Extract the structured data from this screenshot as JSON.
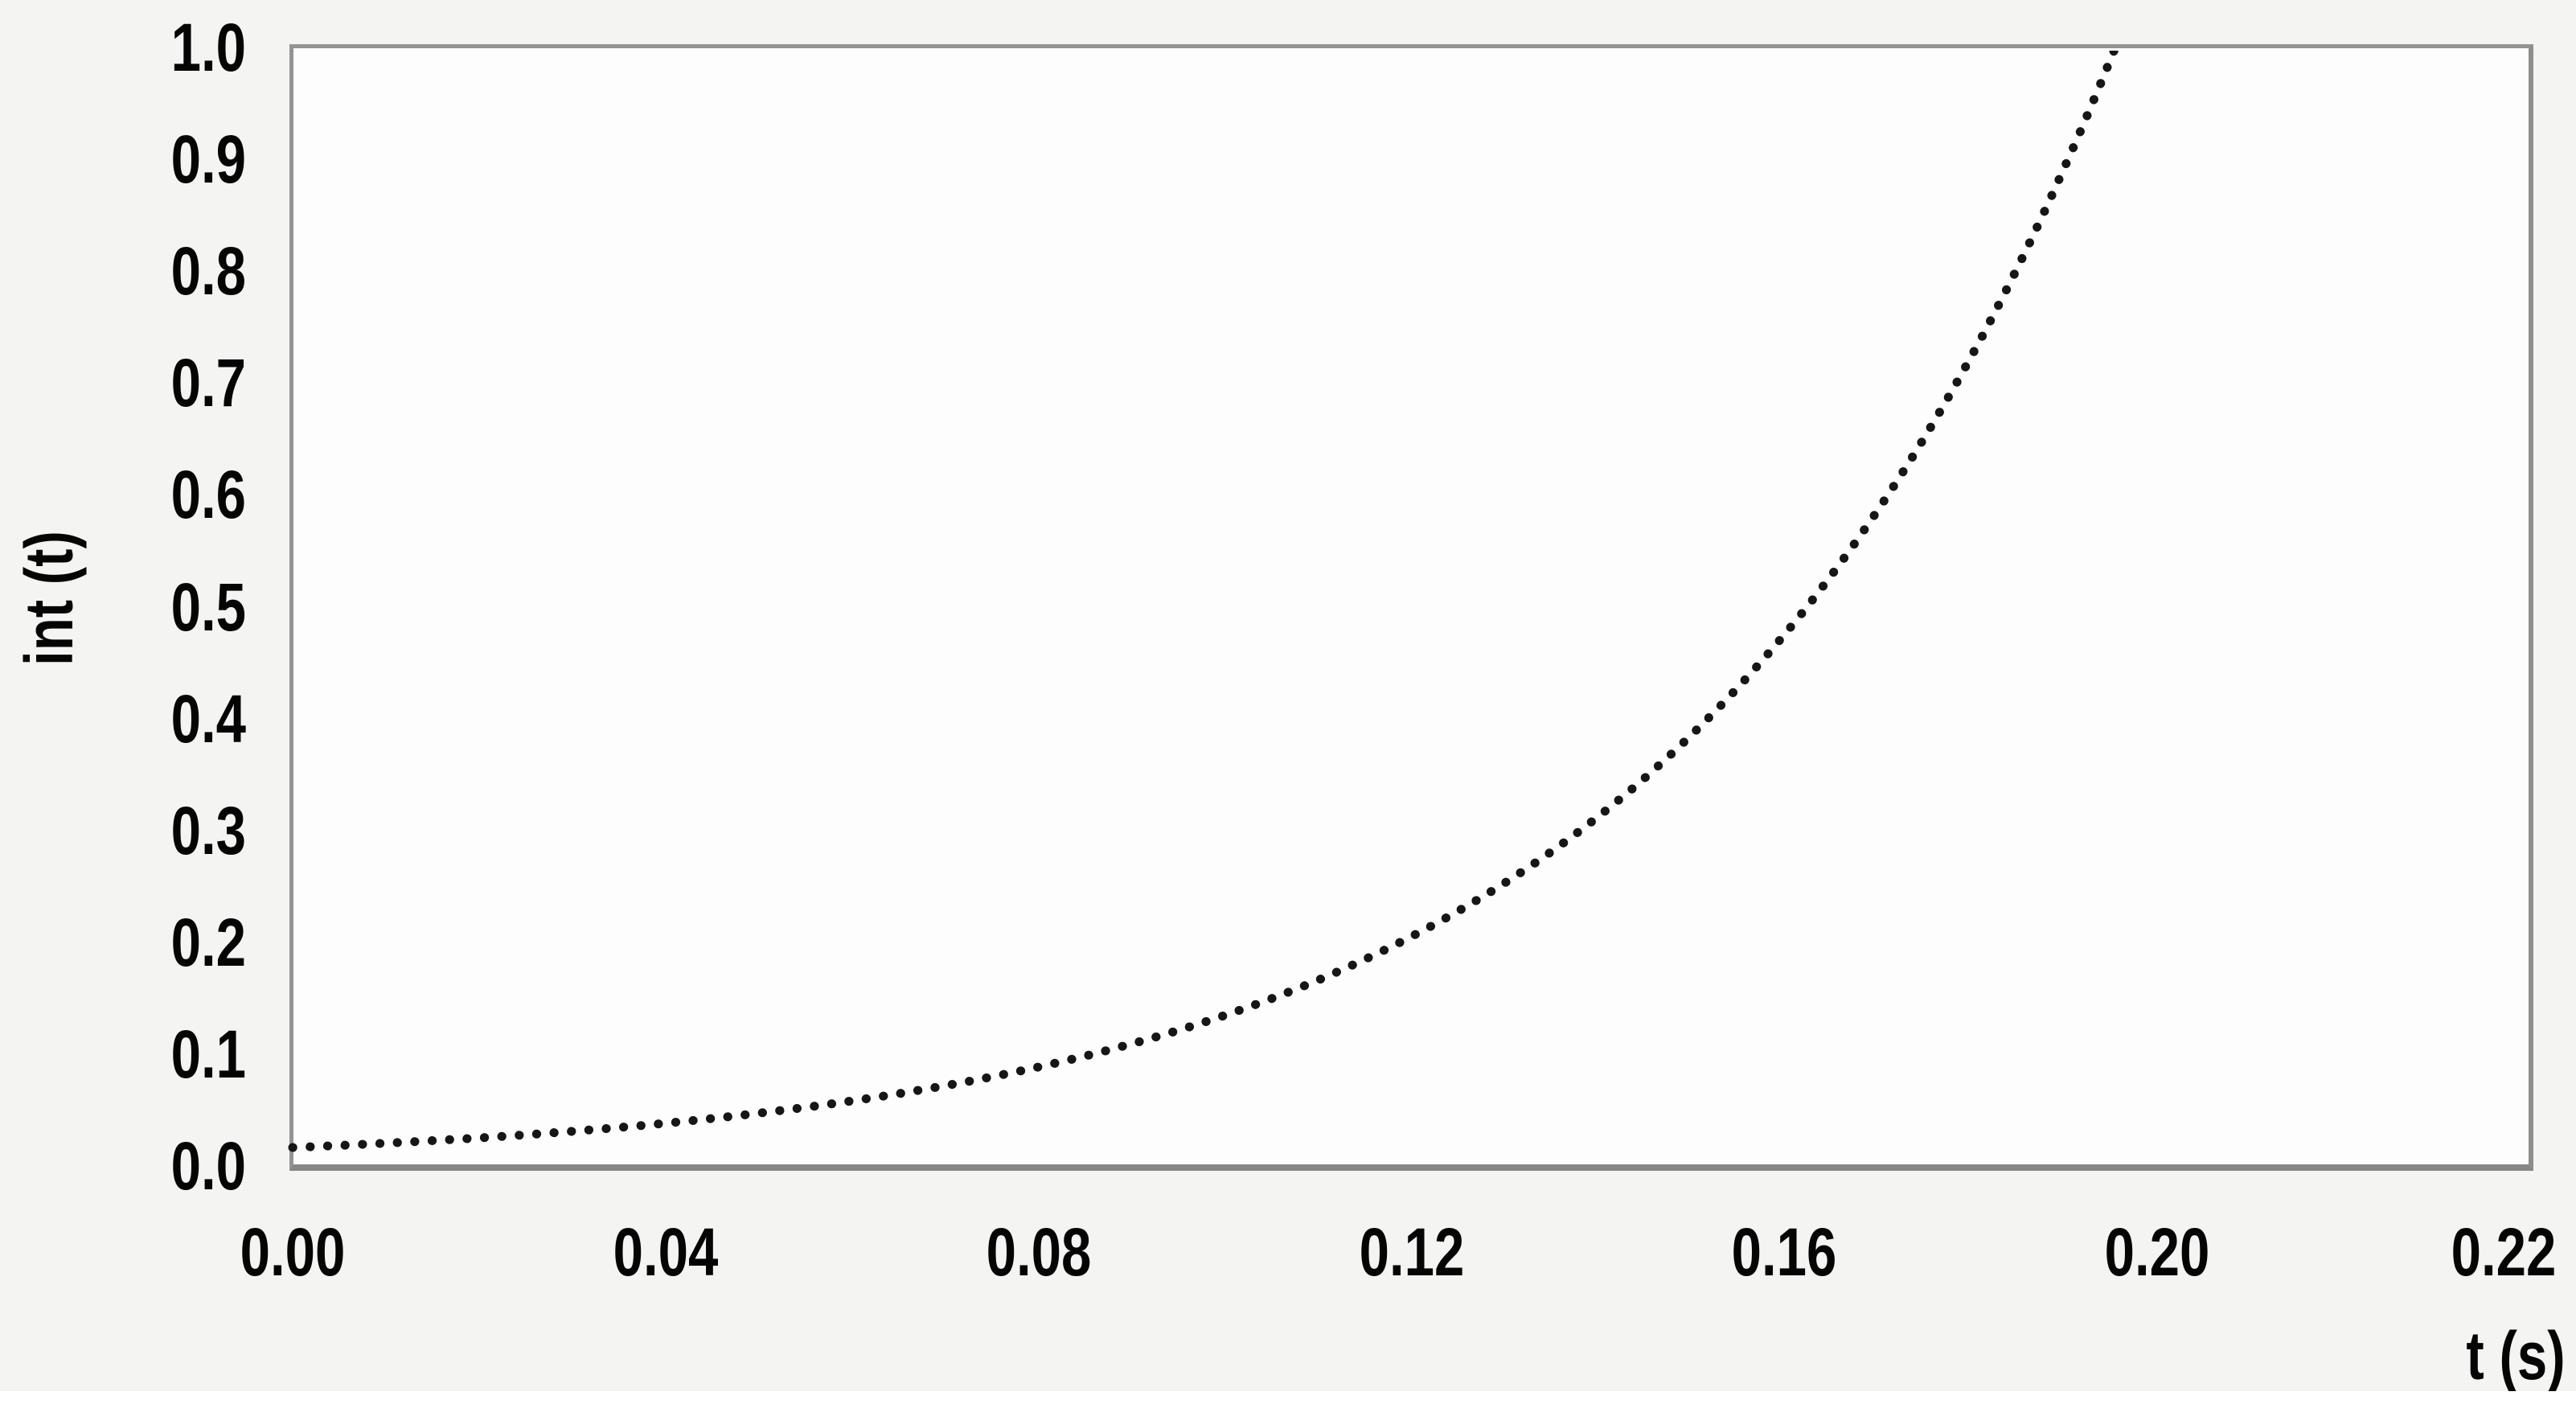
{
  "chart_data": {
    "type": "line",
    "line_style": "dotted-round",
    "title": "",
    "xlabel": "t (s)",
    "ylabel": "int (t)",
    "x_tick_labels": [
      "0.00",
      "0.04",
      "0.08",
      "0.12",
      "0.16",
      "0.20",
      "0.22"
    ],
    "y_tick_labels": [
      "1.0",
      "0.9",
      "0.8",
      "0.7",
      "0.6",
      "0.5",
      "0.4",
      "0.3",
      "0.2",
      "0.1",
      "0.0"
    ],
    "xlim": [
      0.0,
      0.24
    ],
    "ylim": [
      0.0,
      1.0
    ],
    "grid": false,
    "legend_position": "none",
    "series": [
      {
        "name": "int(t)",
        "x": [
          0.0,
          0.01,
          0.02,
          0.03,
          0.04,
          0.05,
          0.06,
          0.07,
          0.08,
          0.09,
          0.1,
          0.11,
          0.12,
          0.13,
          0.14,
          0.15,
          0.16,
          0.17,
          0.18,
          0.19,
          0.1955
        ],
        "y": [
          0.0165,
          0.0204,
          0.0251,
          0.031,
          0.0382,
          0.0472,
          0.0582,
          0.0718,
          0.0885,
          0.1092,
          0.1347,
          0.1662,
          0.2051,
          0.253,
          0.3121,
          0.3851,
          0.475,
          0.586,
          0.723,
          0.8919,
          1.0
        ]
      }
    ],
    "colors": {
      "curve": "#161616",
      "frame": "#8f8f8f",
      "text": "#050505",
      "plot_bg": "#fdfdfd",
      "page_bg": "#f4f4f3"
    }
  }
}
